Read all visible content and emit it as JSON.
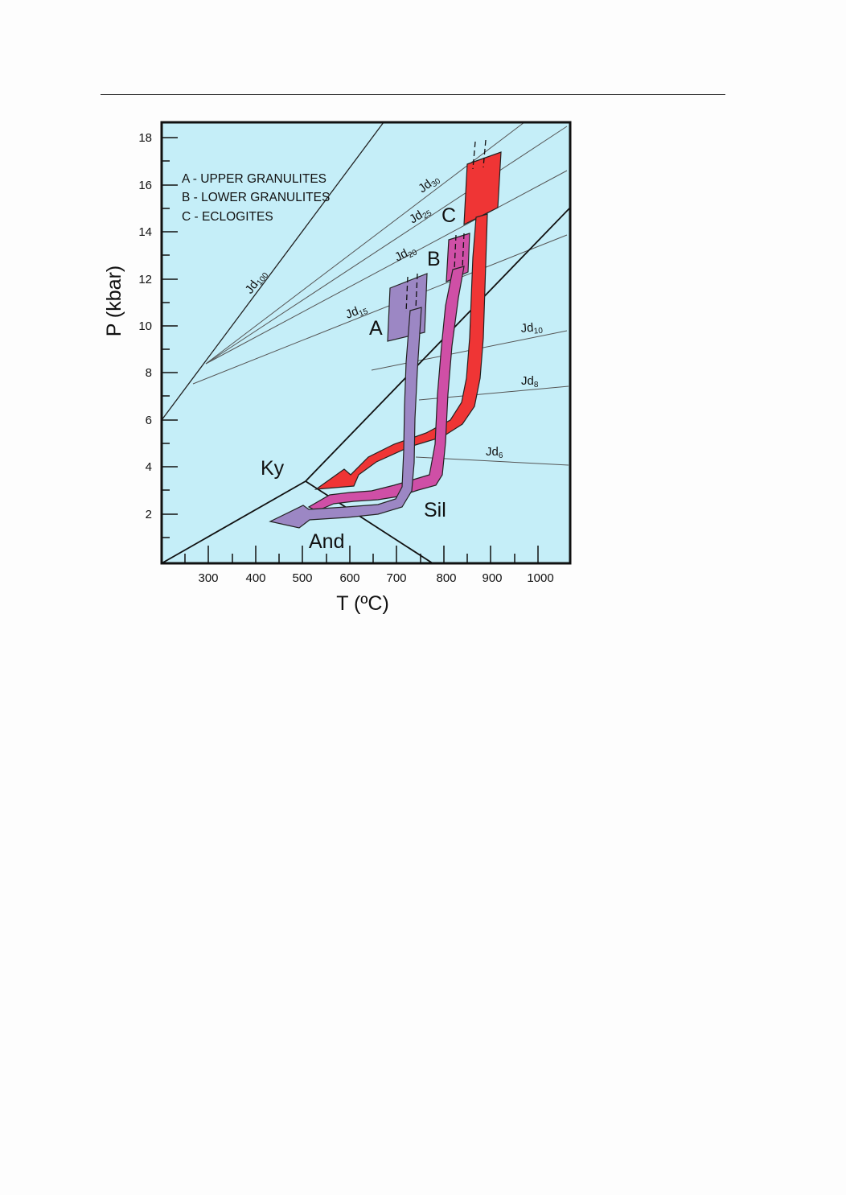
{
  "figure": {
    "xlabel": "T (ºC)",
    "ylabel": "P (kbar)",
    "x_ticks": [
      "300",
      "400",
      "500",
      "600",
      "700",
      "800",
      "900",
      "1000"
    ],
    "y_ticks": [
      "2",
      "4",
      "6",
      "8",
      "10",
      "12",
      "14",
      "16",
      "18"
    ],
    "legend": [
      "A - UPPER GRANULITES",
      "B - LOWER GRANULITES",
      "C - ECLOGITES"
    ],
    "field_labels": {
      "ky": "Ky",
      "sil": "Sil",
      "and": "And"
    },
    "path_labels": {
      "a": "A",
      "b": "B",
      "c": "C"
    },
    "isopleths": [
      {
        "base": "Jd",
        "sub": "100"
      },
      {
        "base": "Jd",
        "sub": "30"
      },
      {
        "base": "Jd",
        "sub": "25"
      },
      {
        "base": "Jd",
        "sub": "20"
      },
      {
        "base": "Jd",
        "sub": "15"
      },
      {
        "base": "Jd",
        "sub": "10"
      },
      {
        "base": "Jd",
        "sub": "8"
      },
      {
        "base": "Jd",
        "sub": "6"
      }
    ],
    "colors": {
      "background": "#c5eef8",
      "path_a": "#9c87c4",
      "path_b": "#cf4fa6",
      "path_c": "#ef3535"
    }
  }
}
